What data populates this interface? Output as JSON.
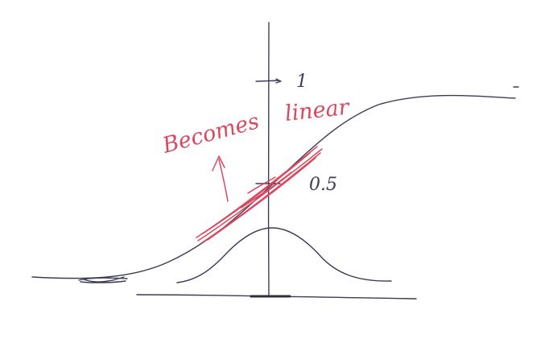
{
  "annotations": {
    "upper_marker": "1",
    "midpoint_marker": "0.5",
    "note_left": "Becomes",
    "note_right": "linear"
  },
  "colors": {
    "pencil_ink": "#3c3c56",
    "red_ink": "#d9485f",
    "background": "#ffffff"
  }
}
